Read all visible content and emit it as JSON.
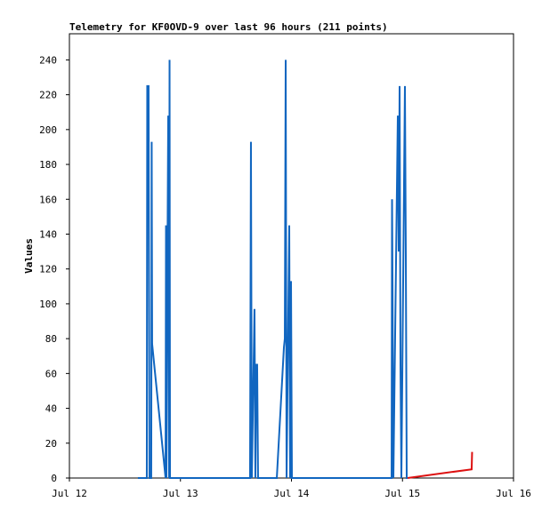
{
  "chart_data": {
    "type": "line",
    "title": "Telemetry for KF0OVD-9 over last 96 hours (211 points)",
    "y_label": "Values",
    "xlim": [
      12,
      16
    ],
    "xticks": [
      {
        "value": 12,
        "label": "Jul 12"
      },
      {
        "value": 13,
        "label": "Jul 13"
      },
      {
        "value": 14,
        "label": "Jul 14"
      },
      {
        "value": 15,
        "label": "Jul 15"
      },
      {
        "value": 16,
        "label": "Jul 16"
      }
    ],
    "ylim": [
      0,
      255
    ],
    "yticks": [
      0,
      20,
      40,
      60,
      80,
      100,
      120,
      140,
      160,
      180,
      200,
      220,
      240
    ],
    "grid": false,
    "series": [
      {
        "color": "#1166c0",
        "x": [
          12.617,
          12.697,
          12.701,
          12.713,
          12.717,
          12.721,
          12.737,
          12.741,
          12.745,
          12.866,
          12.87,
          12.874,
          12.882,
          12.89,
          12.898,
          12.902,
          12.906,
          13.627,
          13.631,
          13.635,
          13.643,
          13.667,
          13.675,
          13.683,
          13.691,
          13.699,
          13.868,
          13.932,
          13.94,
          13.948,
          13.956,
          13.98,
          13.988,
          13.996,
          14.004,
          14.902,
          14.906,
          14.91,
          14.918,
          14.958,
          14.966,
          14.974,
          14.982,
          14.99,
          15.022,
          15.03,
          15.038,
          15.046
        ],
        "values": [
          0,
          0,
          225,
          225,
          113,
          0,
          0,
          193,
          77,
          0,
          145,
          0,
          113,
          208,
          0,
          240,
          0,
          0,
          97,
          193,
          0,
          97,
          0,
          65,
          65,
          0,
          0,
          75,
          80,
          240,
          0,
          145,
          0,
          113,
          0,
          0,
          160,
          113,
          0,
          208,
          130,
          225,
          65,
          0,
          225,
          128,
          0,
          0
        ]
      },
      {
        "color": "#dd1111",
        "x": [
          15.046,
          15.623,
          15.627
        ],
        "values": [
          0,
          5,
          15
        ]
      }
    ]
  }
}
